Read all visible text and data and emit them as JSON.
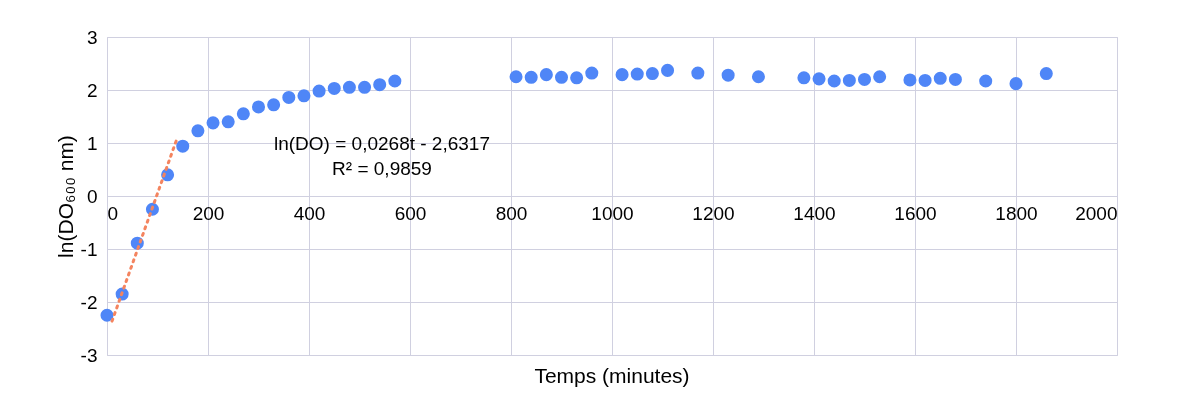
{
  "chart_data": {
    "type": "scatter",
    "xlabel": "Temps (minutes)",
    "ylabel": "ln(DO₆₀₀ nm)",
    "xlim": [
      0,
      2000
    ],
    "xticks": [
      0,
      200,
      400,
      600,
      800,
      1000,
      1200,
      1400,
      1600,
      1800,
      2000
    ],
    "ylim": [
      -3,
      3
    ],
    "yticks": [
      -3,
      -2,
      -1,
      0,
      1,
      2,
      3
    ],
    "grid": true,
    "legend": false,
    "series": [
      {
        "color": "#4f86f7",
        "marker": "circle",
        "x": [
          0,
          30,
          60,
          90,
          120,
          150,
          180,
          210,
          240,
          270,
          300,
          330,
          360,
          390,
          420,
          450,
          480,
          510,
          540,
          570,
          810,
          840,
          870,
          900,
          930,
          960,
          1020,
          1050,
          1080,
          1110,
          1170,
          1230,
          1290,
          1380,
          1410,
          1440,
          1470,
          1500,
          1530,
          1590,
          1620,
          1650,
          1680,
          1740,
          1800,
          1860
        ],
        "values": [
          -2.25,
          -1.85,
          -0.89,
          -0.25,
          0.4,
          0.94,
          1.23,
          1.38,
          1.4,
          1.55,
          1.68,
          1.72,
          1.86,
          1.89,
          1.98,
          2.03,
          2.05,
          2.05,
          2.1,
          2.17,
          2.25,
          2.24,
          2.29,
          2.24,
          2.23,
          2.32,
          2.29,
          2.3,
          2.31,
          2.37,
          2.32,
          2.28,
          2.25,
          2.23,
          2.21,
          2.17,
          2.18,
          2.2,
          2.25,
          2.19,
          2.18,
          2.22,
          2.2,
          2.17,
          2.12,
          2.31
        ]
      },
      {
        "type": "line",
        "line_style": "dotted",
        "color": "#f4845f",
        "x": [
          10,
          140
        ],
        "values": [
          -2.36,
          1.12
        ]
      }
    ],
    "annotations": [
      "ln(DO) = 0,0268t - 2,6317",
      "R² = 0,9859"
    ]
  }
}
